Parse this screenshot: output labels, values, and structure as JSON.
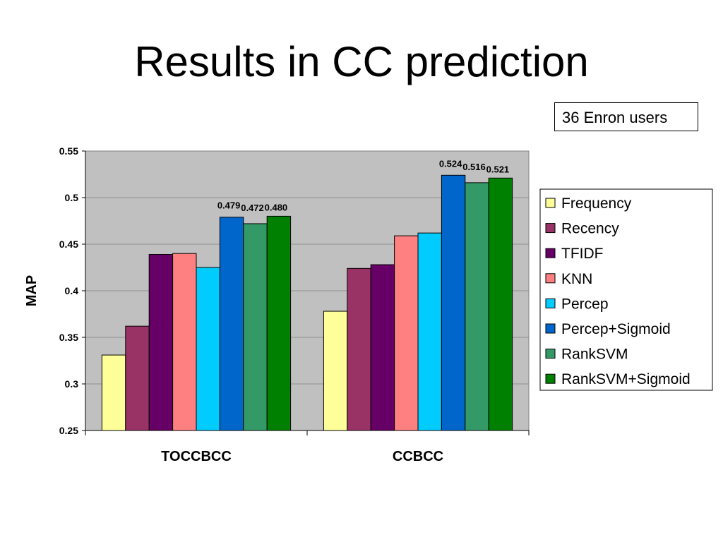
{
  "slide": {
    "title": "Results in CC prediction",
    "note": "36 Enron users"
  },
  "chart_data": {
    "type": "bar",
    "title": "",
    "xlabel": "",
    "ylabel": "MAP",
    "ylim": [
      0.25,
      0.55
    ],
    "yticks": [
      "0.25",
      "0.3",
      "0.35",
      "0.4",
      "0.45",
      "0.5",
      "0.55"
    ],
    "grid": true,
    "legend_position": "right",
    "plot_background": "#C0C0C0",
    "categories": [
      "TOCCBCC",
      "CCBCC"
    ],
    "series": [
      {
        "name": "Frequency",
        "color": "#FFFF99",
        "values": [
          0.331,
          0.378
        ],
        "labels": [
          "",
          ""
        ]
      },
      {
        "name": "Recency",
        "color": "#993366",
        "values": [
          0.362,
          0.424
        ],
        "labels": [
          "",
          ""
        ]
      },
      {
        "name": "TFIDF",
        "color": "#660066",
        "values": [
          0.439,
          0.428
        ],
        "labels": [
          "",
          ""
        ]
      },
      {
        "name": "KNN",
        "color": "#FF8080",
        "values": [
          0.44,
          0.459
        ],
        "labels": [
          "",
          ""
        ]
      },
      {
        "name": "Percep",
        "color": "#00CCFF",
        "values": [
          0.425,
          0.462
        ],
        "labels": [
          "",
          ""
        ]
      },
      {
        "name": "Percep+Sigmoid",
        "color": "#0066CC",
        "values": [
          0.479,
          0.524
        ],
        "labels": [
          "0.479",
          "0.524"
        ]
      },
      {
        "name": "RankSVM",
        "color": "#339966",
        "values": [
          0.472,
          0.516
        ],
        "labels": [
          "0.472",
          "0.516"
        ]
      },
      {
        "name": "RankSVM+Sigmoid",
        "color": "#008000",
        "values": [
          0.48,
          0.521
        ],
        "labels": [
          "0.480",
          "0.521"
        ]
      }
    ]
  }
}
